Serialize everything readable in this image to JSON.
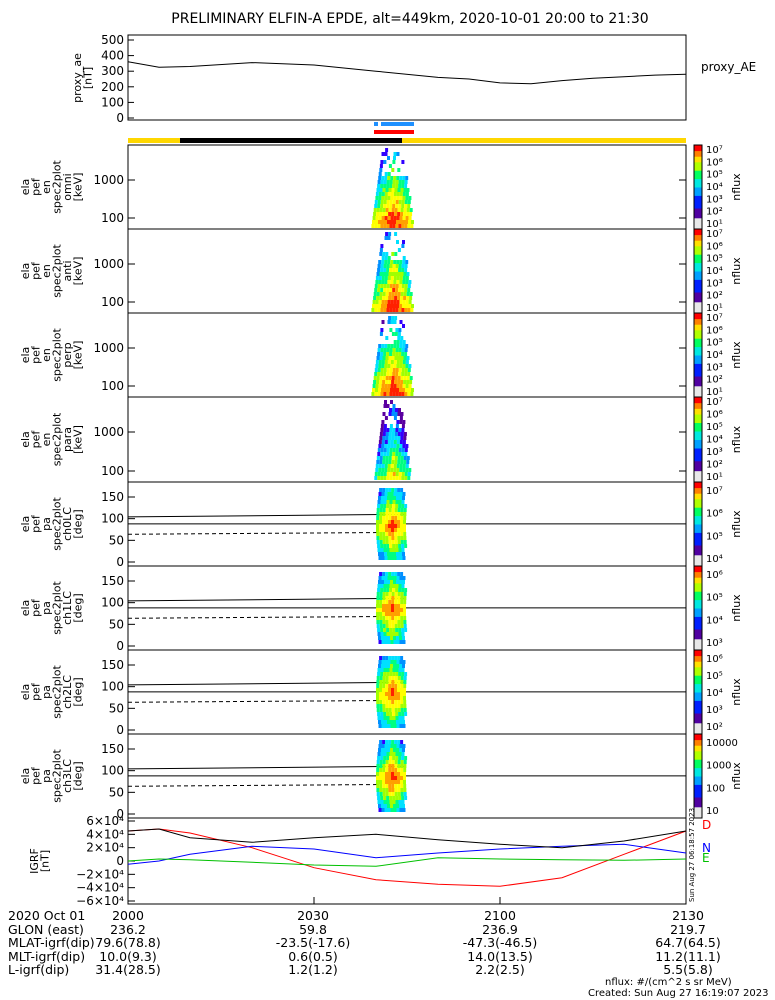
{
  "title": "PRELIMINARY ELFIN-A EPDE, alt=449km, 2020-10-01 20:00 to 21:30",
  "ae_panel": {
    "ylabel": [
      "proxy_ae",
      "[nT]"
    ],
    "yticks": [
      "500",
      "400",
      "300",
      "200",
      "100",
      "0"
    ],
    "legend": "proxy_AE"
  },
  "spec_panels": [
    {
      "ylabel": [
        "ela",
        "pef",
        "en",
        "spec2plot",
        "omni",
        "[keV]"
      ],
      "yticks": [
        "1000",
        "100"
      ],
      "cbar_ticks": [
        "10⁷",
        "10⁶",
        "10⁵",
        "10⁴",
        "10³",
        "10²",
        "10¹"
      ],
      "cbar_label": "nflux"
    },
    {
      "ylabel": [
        "ela",
        "pef",
        "en",
        "spec2plot",
        "anti",
        "[keV]"
      ],
      "yticks": [
        "1000",
        "100"
      ],
      "cbar_ticks": [
        "10⁷",
        "10⁶",
        "10⁵",
        "10⁴",
        "10³",
        "10²",
        "10¹"
      ],
      "cbar_label": "nflux"
    },
    {
      "ylabel": [
        "ela",
        "pef",
        "en",
        "spec2plot",
        "perp",
        "[keV]"
      ],
      "yticks": [
        "1000",
        "100"
      ],
      "cbar_ticks": [
        "10⁷",
        "10⁶",
        "10⁵",
        "10⁴",
        "10³",
        "10²",
        "10¹"
      ],
      "cbar_label": "nflux"
    },
    {
      "ylabel": [
        "ela",
        "pef",
        "en",
        "spec2plot",
        "para",
        "[keV]"
      ],
      "yticks": [
        "1000",
        "100"
      ],
      "cbar_ticks": [
        "10⁷",
        "10⁶",
        "10⁵",
        "10⁴",
        "10³",
        "10²",
        "10¹"
      ],
      "cbar_label": "nflux"
    }
  ],
  "pa_panels": [
    {
      "ylabel": [
        "ela",
        "pef",
        "pa",
        "spec2plot",
        "ch0LC",
        "[deg]"
      ],
      "yticks": [
        "150",
        "100",
        "50",
        "0"
      ],
      "cbar_ticks": [
        "10⁷",
        "10⁶",
        "10⁵",
        "10⁴"
      ],
      "cbar_label": "nflux"
    },
    {
      "ylabel": [
        "ela",
        "pef",
        "pa",
        "spec2plot",
        "ch1LC",
        "[deg]"
      ],
      "yticks": [
        "150",
        "100",
        "50",
        "0"
      ],
      "cbar_ticks": [
        "10⁶",
        "10⁵",
        "10⁴",
        "10³"
      ],
      "cbar_label": "nflux"
    },
    {
      "ylabel": [
        "ela",
        "pef",
        "pa",
        "spec2plot",
        "ch2LC",
        "[deg]"
      ],
      "yticks": [
        "150",
        "100",
        "50",
        "0"
      ],
      "cbar_ticks": [
        "10⁶",
        "10⁵",
        "10⁴",
        "10³",
        "10²"
      ],
      "cbar_label": "nflux"
    },
    {
      "ylabel": [
        "ela",
        "pef",
        "pa",
        "spec2plot",
        "ch3LC",
        "[deg]"
      ],
      "yticks": [
        "150",
        "100",
        "50",
        "0"
      ],
      "cbar_ticks": [
        "10000",
        "1000",
        "100",
        "10"
      ],
      "cbar_label": "nflux"
    }
  ],
  "igrf_panel": {
    "ylabel": [
      "IGRF",
      "[nT]"
    ],
    "yticks": [
      "6×10⁴",
      "4×10⁴",
      "2×10⁴",
      "0",
      "−2×10⁴",
      "−4×10⁴",
      "−6×10⁴"
    ],
    "legend": [
      {
        "label": "D",
        "color": "#ff0000"
      },
      {
        "label": "N",
        "color": "#0000ff"
      },
      {
        "label": "E",
        "color": "#00c000"
      }
    ],
    "side_stamp": "Sun Aug 27 06:18:57 2023"
  },
  "footer": {
    "rows": [
      {
        "label": "2020 Oct 01",
        "values": [
          "2000",
          "2030",
          "2100",
          "2130"
        ]
      },
      {
        "label": "GLON (east)",
        "values": [
          "236.2",
          "59.8",
          "236.9",
          "219.7"
        ]
      },
      {
        "label": "MLAT-igrf(dip)",
        "values": [
          "79.6(78.8)",
          "-23.5(-17.6)",
          "-47.3(-46.5)",
          "64.7(64.5)"
        ]
      },
      {
        "label": "MLT-igrf(dip)",
        "values": [
          "10.0(9.3)",
          "0.6(0.5)",
          "14.0(13.5)",
          "11.2(11.1)"
        ]
      },
      {
        "label": "L-igrf(dip)",
        "values": [
          "31.4(28.5)",
          "1.2(1.2)",
          "2.2(2.5)",
          "5.5(5.8)"
        ]
      }
    ],
    "units_note": "nflux: #/(cm^2 s sr MeV)",
    "created": "Created: Sun Aug 27 16:19:07 2023"
  },
  "colors": {
    "ae_line": "#000000",
    "orbit_bar_sunlit": "#ffd700",
    "orbit_bar_shadow": "#000000",
    "science_zone_blue": "#1e90ff",
    "science_zone_red": "#ff0000",
    "igrf_D": "#ff0000",
    "igrf_N": "#0000ff",
    "igrf_E": "#00c000"
  },
  "chart_data": {
    "type": "line",
    "time_axis": {
      "start": "2020-10-01 20:00",
      "end": "2020-10-01 21:30",
      "ticks": [
        "2000",
        "2030",
        "2100",
        "2130"
      ]
    },
    "proxy_ae": {
      "ylim": [
        0,
        500
      ],
      "x_minutes": [
        0,
        5,
        10,
        20,
        30,
        40,
        50,
        55,
        60,
        65,
        70,
        75,
        80,
        85,
        90
      ],
      "values": [
        360,
        325,
        330,
        355,
        340,
        300,
        260,
        250,
        225,
        220,
        240,
        255,
        265,
        275,
        280
      ]
    },
    "igrf": {
      "ylim": [
        -60000,
        60000
      ],
      "x_minutes": [
        0,
        5,
        10,
        20,
        30,
        40,
        50,
        60,
        70,
        80,
        90
      ],
      "series": [
        {
          "name": "D",
          "values": [
            45000,
            48000,
            42000,
            20000,
            -10000,
            -28000,
            -35000,
            -38000,
            -25000,
            10000,
            45000
          ]
        },
        {
          "name": "N",
          "values": [
            -5000,
            0,
            10000,
            22000,
            18000,
            5000,
            12000,
            18000,
            22000,
            25000,
            12000
          ]
        },
        {
          "name": "E",
          "values": [
            0,
            3000,
            2000,
            -2000,
            -6000,
            -8000,
            5000,
            3000,
            2000,
            1000,
            3000
          ]
        },
        {
          "values": [
            45000,
            48000,
            35000,
            28000,
            35000,
            40000,
            32000,
            25000,
            20000,
            30000,
            45000
          ]
        }
      ]
    },
    "dipole_pa": {
      "solid_upper_deg": [
        104,
        110
      ],
      "solid_lower_deg": [
        88,
        88
      ],
      "dashed_deg": [
        64,
        68
      ]
    }
  }
}
